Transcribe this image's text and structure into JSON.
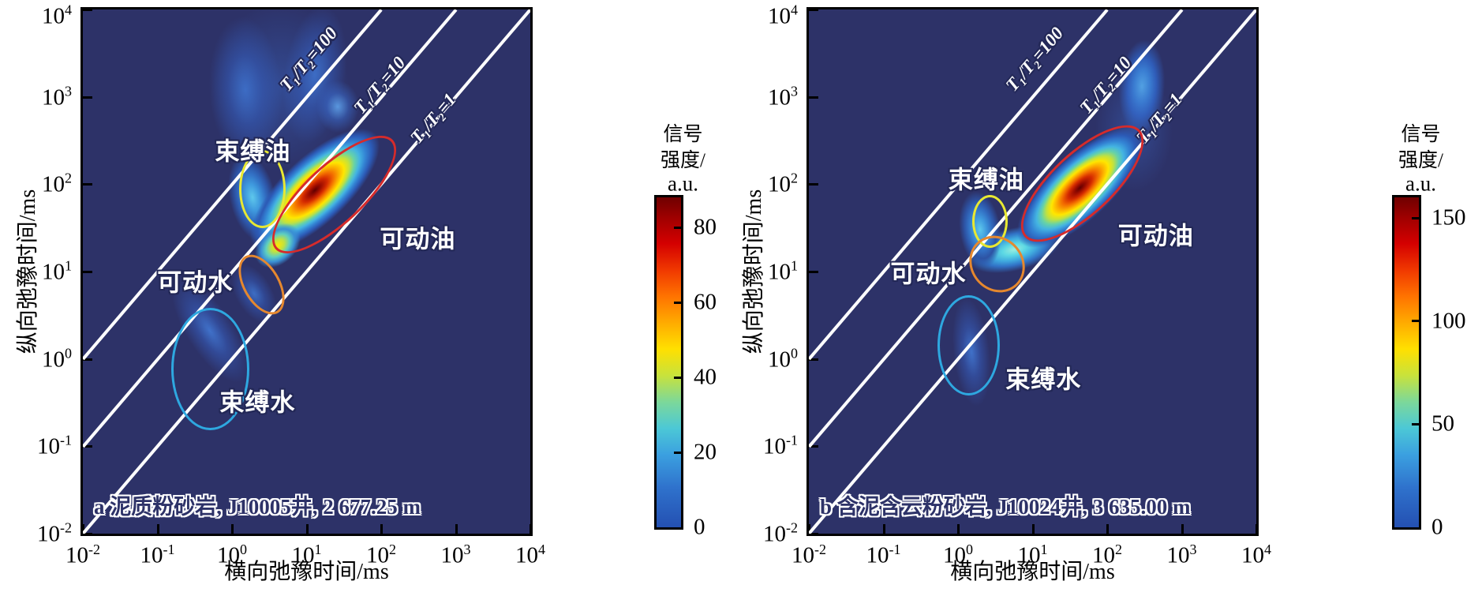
{
  "colors": {
    "page_background": "#ffffff",
    "plot_background": "#2d3268",
    "diagonal_line": "#ffffff",
    "frame": "#000000",
    "region_bound_oil": "#e8e832",
    "region_movable_water": "#e6882e",
    "region_movable_oil": "#d62b2b",
    "region_bound_water": "#2ea8e0"
  },
  "chart_data": [
    {
      "type": "heatmap",
      "panel_id": "a",
      "caption": "a 泥质粉砂岩, J10005井, 2 677.25 m",
      "xlabel": "横向弛豫时间/ms",
      "ylabel": "纵向弛豫时间/ms",
      "scale": "log-log",
      "x_range_ms": [
        0.01,
        10000
      ],
      "y_range_ms": [
        0.01,
        10000
      ],
      "x_tick_exponents": [
        "-2",
        "-1",
        "0",
        "1",
        "2",
        "3",
        "4"
      ],
      "y_tick_exponents": [
        "-2",
        "-1",
        "0",
        "1",
        "2",
        "3",
        "4"
      ],
      "colorbar": {
        "title_lines": [
          "信号",
          "强度/",
          "a.u."
        ],
        "tick_values": [
          80,
          60,
          40,
          20,
          0
        ],
        "value_min": 0,
        "value_max": 88
      },
      "diagonal_lines": [
        {
          "ratio": 100,
          "label": "T₁/T₂=100"
        },
        {
          "ratio": 10,
          "label": "T₁/T₂=10"
        },
        {
          "ratio": 1,
          "label": "T₁/T₂=1"
        }
      ],
      "regions": [
        {
          "name": "bound-oil",
          "label": "束缚油",
          "color": "#e8e832",
          "center": {
            "t2_ms": 2.6,
            "t1_ms": 87
          },
          "label_at": {
            "t2_ms": 1.9,
            "t1_ms": 250
          }
        },
        {
          "name": "movable-water",
          "label": "可动水",
          "color": "#e6882e",
          "center": {
            "t2_ms": 2.5,
            "t1_ms": 7.0
          },
          "label_at": {
            "t2_ms": 0.32,
            "t1_ms": 8.0
          }
        },
        {
          "name": "movable-oil",
          "label": "可动油",
          "color": "#d62b2b",
          "center": {
            "t2_ms": 24,
            "t1_ms": 75
          },
          "label_at": {
            "t2_ms": 310,
            "t1_ms": 25
          }
        },
        {
          "name": "bound-water",
          "label": "束缚水",
          "color": "#2ea8e0",
          "center": {
            "t2_ms": 0.52,
            "t1_ms": 0.76
          },
          "label_at": {
            "t2_ms": 2.2,
            "t1_ms": 0.34
          }
        }
      ],
      "peaks": [
        {
          "id": "a-main-blob",
          "t2_ms": 13,
          "t1_ms": 85,
          "intensity_au": 87
        },
        {
          "id": "a-main-tail",
          "t2_ms": 4.1,
          "t1_ms": 20,
          "intensity_au": 45
        },
        {
          "id": "a-bound-oil-blob",
          "t2_ms": 1.9,
          "t1_ms": 70,
          "intensity_au": 30
        },
        {
          "id": "a-movable-water-spot",
          "t2_ms": 2.0,
          "t1_ms": 5.6,
          "intensity_au": 15
        },
        {
          "id": "a-bound-water-streak",
          "t2_ms": 0.51,
          "t1_ms": 2.1,
          "intensity_au": 18
        },
        {
          "id": "a-plume-left",
          "t2_ms": 1.5,
          "t1_ms": 1200,
          "intensity_au": 12
        },
        {
          "id": "a-plume-right",
          "t2_ms": 13,
          "t1_ms": 1800,
          "intensity_au": 12
        },
        {
          "id": "a-plume-halo",
          "t2_ms": 4.5,
          "t1_ms": 1300,
          "intensity_au": 6
        },
        {
          "id": "a-plume-spot",
          "t2_ms": 26,
          "t1_ms": 780,
          "intensity_au": 18
        }
      ]
    },
    {
      "type": "heatmap",
      "panel_id": "b",
      "caption": "b 含泥含云粉砂岩, J10024井, 3 635.00 m",
      "xlabel": "横向弛豫时间/ms",
      "ylabel": "纵向弛豫时间/ms",
      "scale": "log-log",
      "x_range_ms": [
        0.01,
        10000
      ],
      "y_range_ms": [
        0.01,
        10000
      ],
      "x_tick_exponents": [
        "-2",
        "-1",
        "0",
        "1",
        "2",
        "3",
        "4"
      ],
      "y_tick_exponents": [
        "-2",
        "-1",
        "0",
        "1",
        "2",
        "3",
        "4"
      ],
      "colorbar": {
        "title_lines": [
          "信号",
          "强度/",
          "a.u."
        ],
        "tick_values": [
          150,
          100,
          50,
          0
        ],
        "value_min": 0,
        "value_max": 160
      },
      "diagonal_lines": [
        {
          "ratio": 100,
          "label": "T₁/T₂=100"
        },
        {
          "ratio": 10,
          "label": "T₁/T₂=10"
        },
        {
          "ratio": 1,
          "label": "T₁/T₂=1"
        }
      ],
      "regions": [
        {
          "name": "bound-oil",
          "label": "束缚油",
          "color": "#e8e832",
          "center": {
            "t2_ms": 2.7,
            "t1_ms": 37
          },
          "label_at": {
            "t2_ms": 2.4,
            "t1_ms": 120
          }
        },
        {
          "name": "movable-water",
          "label": "可动水",
          "color": "#e6882e",
          "center": {
            "t2_ms": 3.4,
            "t1_ms": 12
          },
          "label_at": {
            "t2_ms": 0.4,
            "t1_ms": 10
          }
        },
        {
          "name": "movable-oil",
          "label": "可动油",
          "color": "#d62b2b",
          "center": {
            "t2_ms": 47,
            "t1_ms": 100
          },
          "label_at": {
            "t2_ms": 450,
            "t1_ms": 27
          }
        },
        {
          "name": "bound-water",
          "label": "束缚水",
          "color": "#2ea8e0",
          "center": {
            "t2_ms": 1.4,
            "t1_ms": 1.4
          },
          "label_at": {
            "t2_ms": 14,
            "t1_ms": 0.62
          }
        }
      ],
      "peaks": [
        {
          "id": "b-main-blob",
          "t2_ms": 43,
          "t1_ms": 90,
          "intensity_au": 160
        },
        {
          "id": "b-cyan-band",
          "t2_ms": 5.6,
          "t1_ms": 18,
          "intensity_au": 75
        },
        {
          "id": "b-bound-oil-blob",
          "t2_ms": 2.0,
          "t1_ms": 30,
          "intensity_au": 60
        },
        {
          "id": "b-bound-water-streak",
          "t2_ms": 1.5,
          "t1_ms": 1.2,
          "intensity_au": 20
        },
        {
          "id": "b-top-blob",
          "t2_ms": 290,
          "t1_ms": 1300,
          "intensity_au": 55
        },
        {
          "id": "b-top-halo",
          "t2_ms": 230,
          "t1_ms": 420,
          "intensity_au": 15
        }
      ]
    }
  ]
}
